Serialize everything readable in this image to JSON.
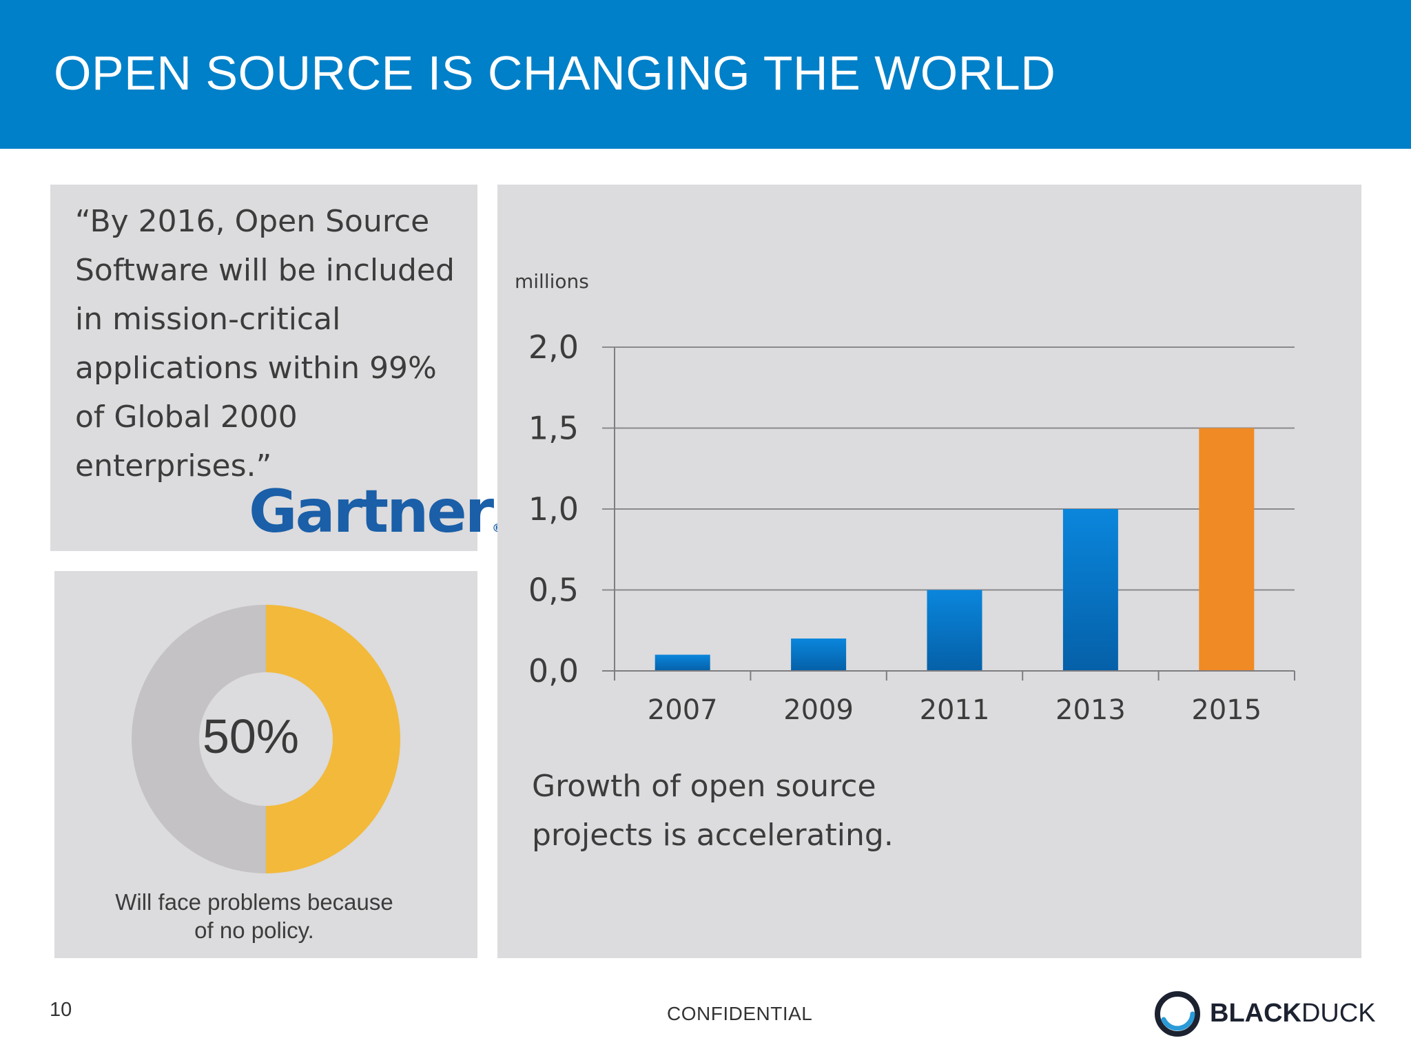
{
  "slide": {
    "title": "OPEN SOURCE IS CHANGING THE WORLD",
    "page_number": "10",
    "confidential": "CONFIDENTIAL"
  },
  "quote": {
    "text": "“By 2016, Open Source\nSoftware will be included\nin mission-critical\napplications within 99%\nof Global 2000\nenterprises.”",
    "source_logo": "Gartner",
    "source_logo_mark": "®"
  },
  "donut": {
    "value_label": "50%",
    "fraction": 0.5,
    "caption": "Will face problems because\nof no policy.",
    "colors": {
      "filled": "#f2b93b",
      "remaining": "#c4c2c5",
      "hole": "#dcdbdd"
    }
  },
  "chart_data": {
    "type": "bar",
    "unit_label": "millions",
    "categories": [
      "2007",
      "2009",
      "2011",
      "2013",
      "2015"
    ],
    "values": [
      0.1,
      0.2,
      0.5,
      1.0,
      1.5
    ],
    "ylim": [
      0,
      2.0
    ],
    "yticks": [
      0.0,
      0.5,
      1.0,
      1.5,
      2.0
    ],
    "ytick_labels": [
      "0,0",
      "0,5",
      "1,0",
      "1,5",
      "2,0"
    ],
    "grid": true,
    "colors": [
      "#0a82d6",
      "#0a82d6",
      "#0a82d6",
      "#0a82d6",
      "#f08a24"
    ],
    "caption": "Growth of open source\nprojects is accelerating."
  },
  "brand": {
    "logo_bold": "BLACK",
    "logo_light": "DUCK",
    "accent": "#0080c8"
  }
}
